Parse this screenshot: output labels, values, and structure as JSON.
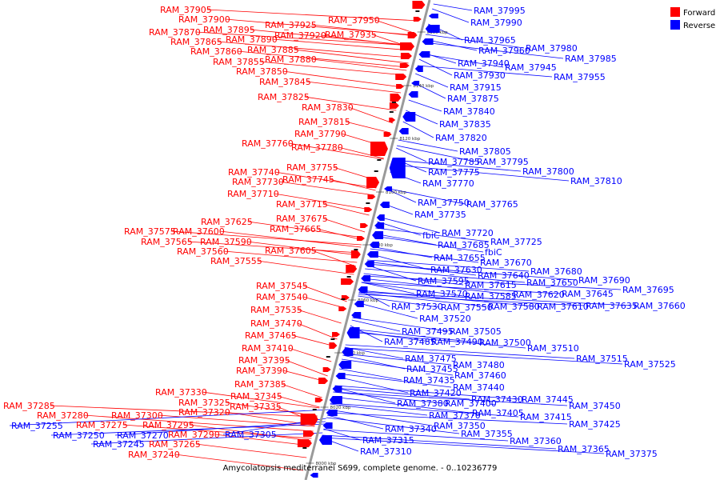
{
  "caption": "Amycolatopsis mediterranei S699, complete genome. - 0..10236779",
  "legend": [
    {
      "label": "Forward",
      "color": "#ff0000"
    },
    {
      "label": "Reverse",
      "color": "#0000ff"
    }
  ],
  "colors": {
    "forward": "#ff0000",
    "reverse": "#0000ff",
    "backbone": "#9a9a9a"
  },
  "ticks": [
    "8160 kbp",
    "8140 kbp",
    "8120 kbp",
    "8100 kbp",
    "8080 kbp",
    "8060 kbp",
    "8040 kbp",
    "8020 kbp",
    "8000 kbp"
  ],
  "forward_genes": [
    "RAM_37905",
    "RAM_37950",
    "RAM_37900",
    "RAM_37925",
    "RAM_37870",
    "RAM_37895",
    "RAM_37920",
    "RAM_37935",
    "RAM_37865",
    "RAM_37890",
    "RAM_37885",
    "RAM_37860",
    "RAM_37880",
    "RAM_37855",
    "RAM_37850",
    "RAM_37845",
    "RAM_37825",
    "RAM_37830",
    "RAM_37815",
    "RAM_37790",
    "RAM_37760",
    "RAM_37780",
    "RAM_37755",
    "RAM_37740",
    "RAM_37745",
    "RAM_37730",
    "RAM_37710",
    "RAM_37715",
    "RAM_37675",
    "RAM_37625",
    "RAM_37665",
    "RAM_37575",
    "RAM_37600",
    "RAM_37565",
    "RAM_37590",
    "RAM_37605",
    "RAM_37560",
    "RAM_37555",
    "RAM_37545",
    "RAM_37540",
    "RAM_37535",
    "RAM_37470",
    "RAM_37465",
    "RAM_37410",
    "RAM_37395",
    "RAM_37390",
    "RAM_37385",
    "RAM_37330",
    "RAM_37345",
    "RAM_37325",
    "RAM_37335",
    "RAM_37285",
    "RAM_37320",
    "RAM_37280",
    "RAM_37300",
    "RAM_37275",
    "RAM_37295",
    "RAM_37290",
    "RAM_37265",
    "RAM_37240"
  ],
  "reverse_genes": [
    "RAM_37995",
    "RAM_37990",
    "RAM_37965",
    "RAM_37960",
    "RAM_37980",
    "RAM_37985",
    "RAM_37940",
    "RAM_37945",
    "RAM_37930",
    "RAM_37955",
    "RAM_37915",
    "RAM_37875",
    "RAM_37840",
    "RAM_37835",
    "RAM_37820",
    "RAM_37805",
    "RAM_37785",
    "RAM_37795",
    "RAM_37800",
    "RAM_37775",
    "RAM_37810",
    "RAM_37770",
    "RAM_37750",
    "RAM_37765",
    "RAM_37735",
    "fbiC",
    "RAM_37720",
    "RAM_37685",
    "RAM_37725",
    "fbiC",
    "RAM_37655",
    "RAM_37670",
    "RAM_37630",
    "RAM_37680",
    "RAM_37640",
    "RAM_37595",
    "RAM_37615",
    "RAM_37650",
    "RAM_37690",
    "RAM_37570",
    "RAM_37585",
    "RAM_37620",
    "RAM_37645",
    "RAM_37695",
    "RAM_37530",
    "RAM_37550",
    "RAM_37580",
    "RAM_37610",
    "RAM_37635",
    "RAM_37660",
    "RAM_37520",
    "RAM_37495",
    "RAM_37505",
    "RAM_37485",
    "RAM_37490",
    "RAM_37500",
    "RAM_37510",
    "RAM_37475",
    "RAM_37515",
    "RAM_37525",
    "RAM_37480",
    "RAM_37455",
    "RAM_37460",
    "RAM_37435",
    "RAM_37440",
    "RAM_37420",
    "RAM_37430",
    "RAM_37445",
    "RAM_37380",
    "RAM_37400",
    "RAM_37450",
    "RAM_37405",
    "RAM_37370",
    "RAM_37415",
    "RAM_37350",
    "RAM_37425",
    "RAM_37340",
    "RAM_37355",
    "RAM_37360",
    "RAM_37365",
    "RAM_37375",
    "RAM_37315",
    "RAM_37310",
    "RAM_37255",
    "RAM_37250",
    "RAM_37270",
    "RAM_37305",
    "RAM_37245"
  ]
}
